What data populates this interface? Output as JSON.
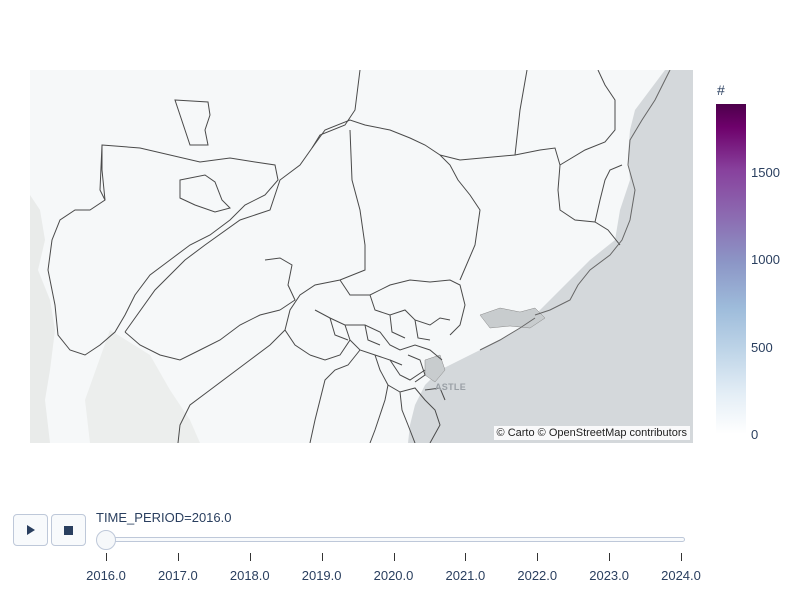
{
  "map": {
    "attribution_carto": "© Carto",
    "attribution_osm": "© OpenStreetMap contributors",
    "city_label": "ASTLE",
    "ocean_color": "#d4d8db",
    "land_color": "#f6f8f9",
    "boundary_color": "#444444"
  },
  "colorbar": {
    "title": "#",
    "ticks": [
      "1500",
      "1000",
      "500",
      "0"
    ],
    "colorscale": "BuPu",
    "range": [
      0,
      1890
    ]
  },
  "animation": {
    "play_icon": "play-icon",
    "stop_icon": "stop-icon",
    "current_label": "TIME_PERIOD=2016.0",
    "current_value": 2016.0,
    "steps": [
      "2016.0",
      "2017.0",
      "2018.0",
      "2019.0",
      "2020.0",
      "2021.0",
      "2022.0",
      "2023.0",
      "2024.0"
    ]
  }
}
